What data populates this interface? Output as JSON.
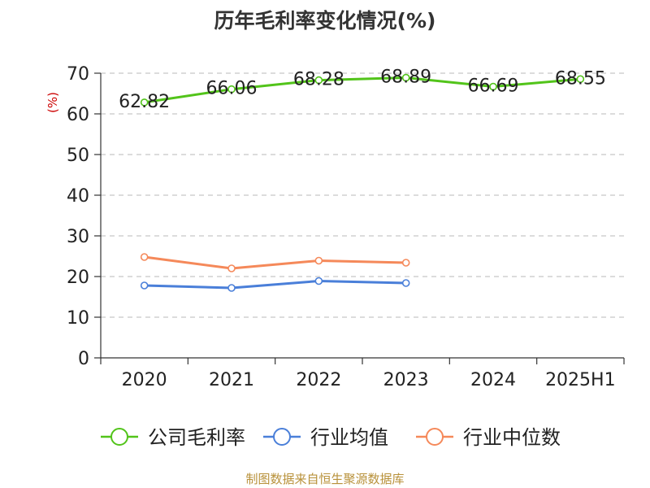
{
  "chart_data": {
    "type": "line",
    "title": "历年毛利率变化情况(%)",
    "ylabel": "(%)",
    "ylim": [
      0,
      70
    ],
    "yticks": [
      0,
      10,
      20,
      30,
      40,
      50,
      60,
      70
    ],
    "categories": [
      "2020",
      "2021",
      "2022",
      "2023",
      "2024",
      "2025H1"
    ],
    "grid": true,
    "legend_position": "bottom",
    "series": [
      {
        "name": "公司毛利率",
        "color": "#52c41a",
        "values": [
          62.82,
          66.06,
          68.28,
          68.89,
          66.69,
          68.55
        ],
        "labels": [
          "62.82",
          "66.06",
          "68.28",
          "68.89",
          "66.69",
          "68.55"
        ]
      },
      {
        "name": "行业均值",
        "color": "#4a7fd9",
        "values": [
          17.8,
          17.2,
          18.9,
          18.4,
          null,
          null
        ]
      },
      {
        "name": "行业中位数",
        "color": "#f5895a",
        "values": [
          24.8,
          22.0,
          23.9,
          23.4,
          null,
          null
        ]
      }
    ]
  },
  "source": "制图数据来自恒生聚源数据库"
}
